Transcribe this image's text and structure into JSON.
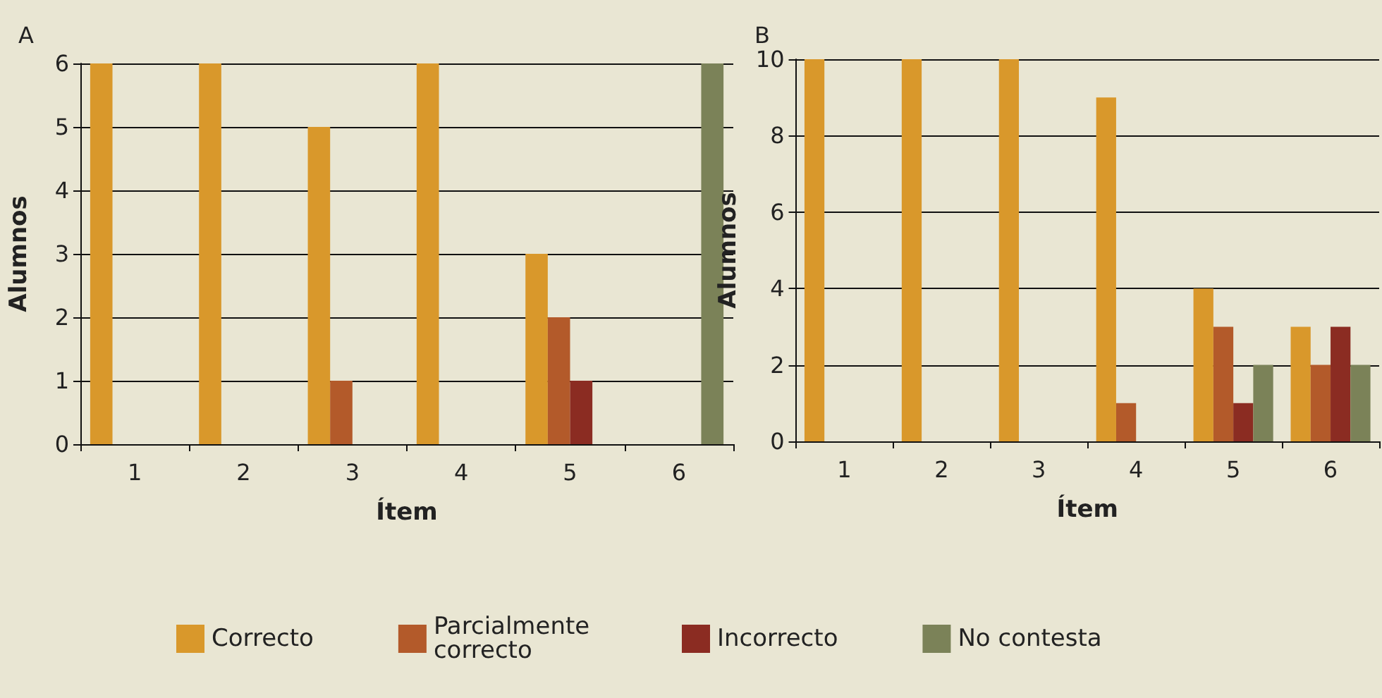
{
  "chart_data": [
    {
      "type": "bar",
      "title": "A",
      "xlabel": "Ítem",
      "ylabel": "Alumnos",
      "categories": [
        "1",
        "2",
        "3",
        "4",
        "5",
        "6"
      ],
      "ylim": [
        0,
        6
      ],
      "yticks": [
        0,
        1,
        2,
        3,
        4,
        5,
        6
      ],
      "grid": "y",
      "legend": "bottom",
      "series": [
        {
          "name": "Correcto",
          "color": "#d9982b",
          "values": [
            6,
            6,
            5,
            6,
            3,
            0
          ]
        },
        {
          "name": "Parcialmente correcto",
          "color": "#b35a2a",
          "values": [
            0,
            0,
            1,
            0,
            2,
            0
          ]
        },
        {
          "name": "Incorrecto",
          "color": "#8b2c22",
          "values": [
            0,
            0,
            0,
            0,
            1,
            0
          ]
        },
        {
          "name": "No contesta",
          "color": "#7b8258",
          "values": [
            0,
            0,
            0,
            0,
            0,
            6
          ]
        }
      ]
    },
    {
      "type": "bar",
      "title": "B",
      "xlabel": "Ítem",
      "ylabel": "Alumnos",
      "categories": [
        "1",
        "2",
        "3",
        "4",
        "5",
        "6"
      ],
      "ylim": [
        0,
        10
      ],
      "yticks": [
        0,
        2,
        4,
        6,
        8,
        10
      ],
      "grid": "y",
      "series": [
        {
          "name": "Correcto",
          "color": "#d9982b",
          "values": [
            10,
            10,
            10,
            9,
            4,
            3
          ]
        },
        {
          "name": "Parcialmente correcto",
          "color": "#b35a2a",
          "values": [
            0,
            0,
            0,
            1,
            3,
            2
          ]
        },
        {
          "name": "Incorrecto",
          "color": "#8b2c22",
          "values": [
            0,
            0,
            0,
            0,
            1,
            3
          ]
        },
        {
          "name": "No contesta",
          "color": "#7b8258",
          "values": [
            0,
            0,
            0,
            0,
            2,
            2
          ]
        }
      ]
    }
  ]
}
